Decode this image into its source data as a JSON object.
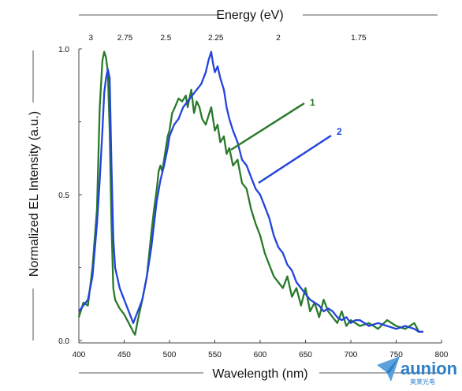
{
  "chart_data": {
    "type": "line",
    "xlabel": "Wavelength (nm)",
    "ylabel": "Normalized EL Intensity (a.u.)",
    "top_axis_label": "Energy (eV)",
    "xlim": [
      400,
      800
    ],
    "ylim": [
      0.0,
      1.0
    ],
    "x_ticks": [
      "400",
      "450",
      "500",
      "550",
      "600",
      "650",
      "700",
      "750",
      "800"
    ],
    "y_ticks": [
      {
        "value": 0.0,
        "label": "0.0"
      },
      {
        "value": 0.5,
        "label": "0.5"
      },
      {
        "value": 1.0,
        "label": "1.0"
      }
    ],
    "top_ticks": [
      {
        "ev": 3,
        "label": "3"
      },
      {
        "ev": 2.75,
        "label": "2.75"
      },
      {
        "ev": 2.5,
        "label": "2.5"
      },
      {
        "ev": 2.25,
        "label": "2.25"
      },
      {
        "ev": 2,
        "label": "2"
      },
      {
        "ev": 1.75,
        "label": "1.75"
      }
    ],
    "grid": false,
    "series": [
      {
        "name": "1",
        "color": "#2a7a2a",
        "x": [
          400,
          405,
          410,
          415,
          420,
          423,
          426,
          428,
          430,
          432,
          434,
          436,
          438,
          440,
          445,
          450,
          455,
          460,
          462,
          465,
          470,
          475,
          480,
          483,
          486,
          488,
          490,
          492,
          494,
          496,
          498,
          500,
          503,
          506,
          510,
          514,
          518,
          520,
          524,
          527,
          530,
          533,
          536,
          540,
          543,
          546,
          548,
          550,
          553,
          556,
          560,
          563,
          566,
          570,
          575,
          580,
          585,
          590,
          595,
          600,
          605,
          610,
          615,
          620,
          625,
          630,
          635,
          640,
          645,
          650,
          655,
          660,
          665,
          670,
          675,
          680,
          685,
          690,
          695,
          700,
          710,
          720,
          730,
          740,
          750,
          760,
          770,
          775,
          780
        ],
        "y": [
          0.08,
          0.13,
          0.12,
          0.25,
          0.45,
          0.8,
          0.96,
          0.99,
          0.97,
          0.92,
          0.72,
          0.4,
          0.18,
          0.14,
          0.11,
          0.09,
          0.06,
          0.03,
          0.02,
          0.07,
          0.14,
          0.22,
          0.37,
          0.45,
          0.52,
          0.58,
          0.6,
          0.58,
          0.62,
          0.66,
          0.7,
          0.72,
          0.78,
          0.8,
          0.83,
          0.82,
          0.84,
          0.8,
          0.86,
          0.78,
          0.82,
          0.8,
          0.76,
          0.74,
          0.77,
          0.8,
          0.76,
          0.72,
          0.74,
          0.68,
          0.7,
          0.64,
          0.66,
          0.6,
          0.62,
          0.54,
          0.52,
          0.45,
          0.4,
          0.36,
          0.3,
          0.26,
          0.22,
          0.2,
          0.18,
          0.22,
          0.15,
          0.18,
          0.12,
          0.18,
          0.1,
          0.13,
          0.08,
          0.14,
          0.1,
          0.08,
          0.06,
          0.1,
          0.05,
          0.07,
          0.05,
          0.06,
          0.04,
          0.07,
          0.05,
          0.04,
          0.06,
          0.03,
          0.03
        ]
      },
      {
        "name": "2",
        "color": "#2244dd",
        "x": [
          400,
          405,
          410,
          415,
          420,
          423,
          426,
          428,
          430,
          432,
          434,
          436,
          438,
          440,
          445,
          450,
          455,
          460,
          465,
          470,
          475,
          480,
          483,
          486,
          490,
          494,
          498,
          500,
          505,
          510,
          515,
          520,
          525,
          530,
          535,
          540,
          543,
          546,
          548,
          550,
          553,
          556,
          560,
          563,
          566,
          570,
          575,
          580,
          585,
          590,
          595,
          600,
          605,
          610,
          615,
          620,
          625,
          630,
          635,
          640,
          645,
          650,
          655,
          660,
          665,
          670,
          675,
          680,
          685,
          690,
          695,
          700,
          705,
          710,
          720,
          730,
          740,
          750,
          760,
          770,
          775,
          780
        ],
        "y": [
          0.1,
          0.12,
          0.14,
          0.22,
          0.4,
          0.55,
          0.72,
          0.85,
          0.9,
          0.93,
          0.9,
          0.6,
          0.35,
          0.25,
          0.18,
          0.14,
          0.1,
          0.06,
          0.1,
          0.14,
          0.22,
          0.32,
          0.4,
          0.48,
          0.55,
          0.6,
          0.66,
          0.7,
          0.74,
          0.76,
          0.8,
          0.82,
          0.84,
          0.86,
          0.88,
          0.92,
          0.96,
          0.99,
          0.95,
          0.92,
          0.94,
          0.9,
          0.86,
          0.8,
          0.76,
          0.72,
          0.68,
          0.62,
          0.6,
          0.56,
          0.52,
          0.5,
          0.46,
          0.42,
          0.36,
          0.32,
          0.3,
          0.26,
          0.24,
          0.2,
          0.18,
          0.16,
          0.14,
          0.13,
          0.12,
          0.1,
          0.11,
          0.1,
          0.08,
          0.07,
          0.08,
          0.06,
          0.07,
          0.07,
          0.05,
          0.06,
          0.05,
          0.04,
          0.05,
          0.04,
          0.03,
          0.03
        ]
      }
    ],
    "annotations": [
      {
        "text": "1",
        "series": "1"
      },
      {
        "text": "2",
        "series": "2"
      }
    ]
  },
  "logo": {
    "name": "aunion",
    "text": "aunion",
    "subtext": "奥莱光电",
    "color": "#2f7fc8"
  }
}
